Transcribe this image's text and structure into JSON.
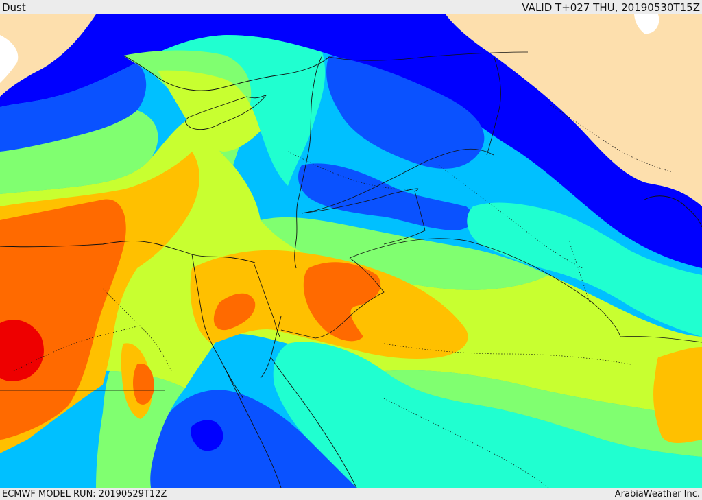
{
  "header": {
    "product_name": "Dust",
    "valid_time": "VALID T+027 THU, 20190530T15Z"
  },
  "footer": {
    "model_run": "ECMWF MODEL RUN: 20190529T12Z",
    "credit": "ArabiaWeather Inc."
  },
  "map": {
    "field": "dust concentration",
    "palette": {
      "very_low": "#0000ff",
      "low": "#0a52ff",
      "low_mid": "#00c0ff",
      "mid": "#20ffd0",
      "mid_high": "#80ff70",
      "high": "#c8ff30",
      "higher": "#ffc000",
      "very_high": "#ff6a00",
      "extreme": "#ee0000",
      "land_outside": "#fddfad",
      "sea_outside": "#ffffff"
    },
    "layers": [
      "filled-contours",
      "coastlines",
      "country-borders",
      "province-borders"
    ]
  }
}
